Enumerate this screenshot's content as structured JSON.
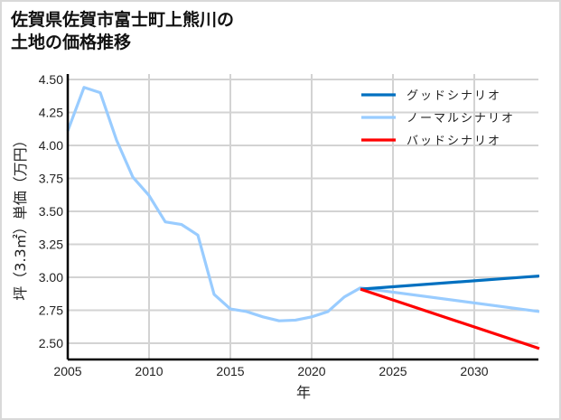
{
  "chart_data": {
    "type": "line",
    "title": "佐賀県佐賀市富士町上熊川の土地の価格推移",
    "title_lines": [
      "佐賀県佐賀市富士町上熊川の",
      "土地の価格推移"
    ],
    "xlabel": "年",
    "ylabel": "坪（3.3㎡）単価（万円）",
    "xlim": [
      2005,
      2034
    ],
    "ylim": [
      2.36,
      4.52
    ],
    "x_ticks": [
      "2005",
      "2010",
      "2015",
      "2020",
      "2025",
      "2030"
    ],
    "y_ticks": [
      "2.50",
      "2.75",
      "3.00",
      "3.25",
      "3.50",
      "3.75",
      "4.00",
      "4.25",
      "4.50"
    ],
    "grid": true,
    "legend_position": "upper right",
    "series": [
      {
        "name": "グッドシナリオ",
        "color": "#0070c0",
        "x": [
          2023,
          2034
        ],
        "values": [
          2.91,
          3.01
        ]
      },
      {
        "name": "ノーマルシナリオ",
        "color": "#99ccff",
        "x": [
          2005,
          2006,
          2007,
          2008,
          2009,
          2010,
          2011,
          2012,
          2013,
          2014,
          2015,
          2016,
          2017,
          2018,
          2019,
          2020,
          2021,
          2022,
          2023,
          2034
        ],
        "values": [
          4.11,
          4.44,
          4.4,
          4.04,
          3.76,
          3.62,
          3.42,
          3.4,
          3.32,
          2.87,
          2.76,
          2.74,
          2.7,
          2.67,
          2.675,
          2.7,
          2.74,
          2.85,
          2.92,
          2.74
        ]
      },
      {
        "name": "バッドシナリオ",
        "color": "#ff0000",
        "x": [
          2023,
          2034
        ],
        "values": [
          2.91,
          2.46
        ]
      }
    ]
  }
}
